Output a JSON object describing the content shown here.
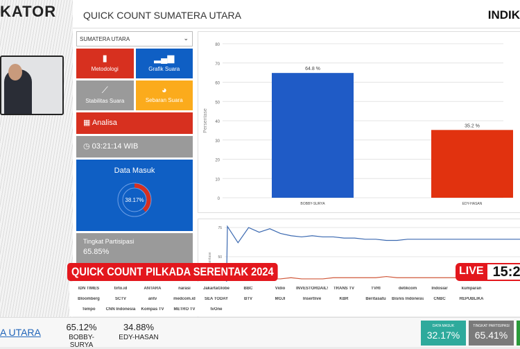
{
  "header": {
    "logo_text": "KATOR",
    "title": "QUICK COUNT SUMATERA UTARA",
    "brand": "INDIK"
  },
  "sidebar": {
    "region_select": "SUMATERA UTARA",
    "tiles": [
      {
        "label": "Metodologi",
        "icon": "book-icon",
        "color": "#d7301f"
      },
      {
        "label": "Grafik Suara",
        "icon": "bar-chart-icon",
        "color": "#0f5fc4"
      },
      {
        "label": "Stabilitas Suara",
        "icon": "line-chart-icon",
        "color": "#9a9a9a"
      },
      {
        "label": "Sebaran Suara",
        "icon": "pie-chart-icon",
        "color": "#fbab1c"
      }
    ],
    "analisa": "Analisa",
    "clock": "03:21:14 WIB",
    "data_masuk": {
      "label": "Data Masuk",
      "value": "38.17%",
      "fraction": 0.3817
    },
    "partisipasi": {
      "label": "Tingkat Partisipasi",
      "value": "65.85%"
    }
  },
  "chart_data": [
    {
      "type": "bar",
      "categories": [
        "BOBBY-SURYA",
        "EDY-HASAN"
      ],
      "values": [
        64.8,
        35.2
      ],
      "data_labels": [
        "64.8 %",
        "35.2 %"
      ],
      "colors": [
        "#1f5bc6",
        "#e1320f"
      ],
      "ylabel": "Persentase",
      "ylim": [
        0,
        80
      ],
      "yticks": [
        0,
        10,
        20,
        30,
        40,
        50,
        60,
        70,
        80
      ],
      "grid": true
    },
    {
      "type": "line",
      "ylabel": "Persentase",
      "yticks": [
        50,
        75
      ],
      "grid": true,
      "series": [
        {
          "color": "#3a68b0",
          "values": [
            0,
            76,
            62,
            75,
            71,
            74,
            70,
            68,
            67,
            68,
            67,
            67,
            66,
            66,
            65,
            65,
            64,
            64,
            65,
            65,
            65,
            65,
            65,
            65,
            65,
            65,
            65,
            65,
            65,
            65
          ]
        },
        {
          "color": "#d0583a",
          "values": [
            34,
            30,
            31,
            30,
            30,
            31,
            31,
            32,
            31,
            31,
            31,
            32,
            32,
            32,
            32,
            32,
            33,
            32,
            32,
            32,
            32,
            32,
            32,
            32,
            32,
            32,
            32,
            32,
            32,
            32
          ]
        }
      ]
    }
  ],
  "overlay": {
    "banner": "QUICK COUNT PILKADA SERENTAK 2024",
    "live": "LIVE",
    "time": "15:2",
    "media_logos": [
      "IDN TIMES",
      "tirto.id",
      "ANTARA",
      "narasi",
      "JakartaGlobe",
      "BBC",
      "Vidio",
      "INVESTORDAILY",
      "TRANS TV",
      "TVRI",
      "detikcom",
      "Indosiar",
      "kumparan",
      "Bloomberg",
      "SCTV",
      "antv",
      "medcom.id",
      "SEA TODAY",
      "BTV",
      "MOJI",
      "Insertlive",
      "KBR",
      "Beritasatu",
      "Bisnis Indonesia",
      "CNBC",
      "REPUBLIKA",
      "Tempo",
      "CNN Indonesia",
      "Kompas TV",
      "METRO TV",
      "tvOne"
    ]
  },
  "ticker": {
    "region": "A UTARA",
    "candidates": [
      {
        "pct": "65.12%",
        "name": "BOBBY-SURYA"
      },
      {
        "pct": "34.88%",
        "name": "EDY-HASAN"
      }
    ],
    "data_masuk": {
      "label": "DATA MASUK",
      "value": "32.17%",
      "color": "#2eaa9c"
    },
    "partisipasi": {
      "label": "TINGKAT PARTISIPASI",
      "value": "65.41%",
      "color": "#7a7a7a"
    }
  }
}
